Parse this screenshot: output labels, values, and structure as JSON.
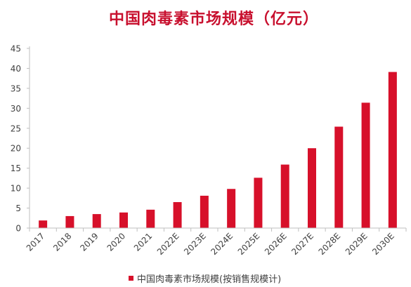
{
  "chart_data": {
    "type": "bar",
    "title": "中国肉毒素市场规模（亿元）",
    "xlabel": "",
    "ylabel": "",
    "categories": [
      "2017",
      "2018",
      "2019",
      "2020",
      "2021",
      "2022E",
      "2023E",
      "2024E",
      "2025E",
      "2026E",
      "2027E",
      "2028E",
      "2029E",
      "2030E"
    ],
    "series": [
      {
        "name": "中国肉毒素市场规模(按销售规模计)",
        "color": "#d7102a",
        "values": [
          1.9,
          3.0,
          3.5,
          3.9,
          4.6,
          6.5,
          8.1,
          9.8,
          12.6,
          15.9,
          20.0,
          25.4,
          31.4,
          39.1
        ]
      }
    ],
    "ylim": [
      0,
      45
    ],
    "yticks": [
      0,
      5,
      10,
      15,
      20,
      25,
      30,
      35,
      40,
      45
    ],
    "grid": false,
    "legend_position": "bottom"
  }
}
